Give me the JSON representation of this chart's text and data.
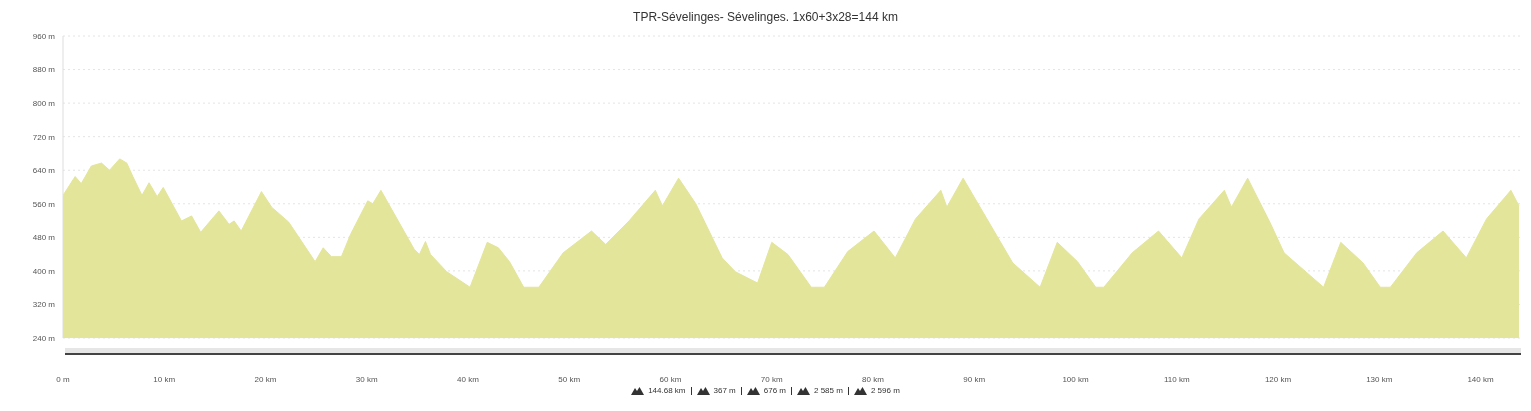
{
  "chart_data": {
    "type": "area",
    "title": "TPR-Sévelinges- Sévelinges. 1x60+3x28=144 km",
    "x": [
      0,
      1.2,
      1.8,
      2.8,
      3.8,
      4.6,
      5.6,
      6.3,
      6.9,
      7.8,
      8.5,
      9.3,
      9.9,
      11.7,
      12.7,
      13.6,
      15.4,
      16.4,
      16.9,
      17.6,
      19.6,
      20.6,
      22.3,
      24.9,
      25.7,
      26.5,
      27.5,
      28.4,
      30.1,
      30.6,
      31.4,
      34.7,
      35.2,
      35.8,
      36.3,
      37.9,
      40.2,
      41.9,
      43.0,
      44.1,
      45.5,
      47.0,
      49.4,
      52.2,
      53.6,
      55.9,
      58.5,
      59.2,
      60.8,
      62.5,
      65.1,
      66.4,
      68.6,
      70.0,
      71.6,
      73.9,
      75.2,
      77.5,
      80.1,
      82.2,
      84.2,
      86.7,
      87.3,
      88.9,
      93.8,
      96.5,
      98.2,
      100.2,
      102.0,
      102.8,
      105.6,
      108.2,
      110.5,
      112.2,
      114.7,
      115.4,
      117.0,
      119.3,
      120.6,
      124.5,
      126.2,
      128.4,
      130.1,
      131.1,
      133.7,
      136.3,
      138.6,
      140.6,
      143.0,
      143.8
    ],
    "series": [
      {
        "color": "#e3e59a",
        "values": [
          580,
          625,
          608,
          650,
          657,
          640,
          667,
          657,
          625,
          580,
          610,
          577,
          599,
          519,
          531,
          492,
          543,
          511,
          519,
          495,
          589,
          552,
          516,
          422,
          455,
          434,
          434,
          487,
          567,
          560,
          592,
          451,
          439,
          470,
          439,
          398,
          361,
          468,
          455,
          422,
          361,
          361,
          443,
          495,
          463,
          519,
          592,
          555,
          621,
          560,
          431,
          398,
          371,
          468,
          439,
          361,
          361,
          446,
          495,
          431,
          524,
          592,
          552,
          621,
          419,
          361,
          468,
          422,
          361,
          361,
          443,
          495,
          431,
          524,
          592,
          552,
          621,
          511,
          443,
          361,
          468,
          419,
          361,
          361,
          443,
          495,
          431,
          524,
          592,
          555
        ]
      }
    ],
    "xlim": [
      0,
      144
    ],
    "xticks": [
      {
        "value": 0,
        "label": "0 m"
      },
      {
        "value": 10,
        "label": "10 km"
      },
      {
        "value": 20,
        "label": "20 km"
      },
      {
        "value": 30,
        "label": "30 km"
      },
      {
        "value": 40,
        "label": "40 km"
      },
      {
        "value": 50,
        "label": "50 km"
      },
      {
        "value": 60,
        "label": "60 km"
      },
      {
        "value": 70,
        "label": "70 km"
      },
      {
        "value": 80,
        "label": "80 km"
      },
      {
        "value": 90,
        "label": "90 km"
      },
      {
        "value": 100,
        "label": "100 km"
      },
      {
        "value": 110,
        "label": "110 km"
      },
      {
        "value": 120,
        "label": "120 km"
      },
      {
        "value": 130,
        "label": "130 km"
      },
      {
        "value": 140,
        "label": "140 km"
      }
    ],
    "ylim": [
      240,
      960
    ],
    "yticks": [
      {
        "value": 240,
        "label": "240 m"
      },
      {
        "value": 320,
        "label": "320 m"
      },
      {
        "value": 400,
        "label": "400 m"
      },
      {
        "value": 480,
        "label": "480 m"
      },
      {
        "value": 560,
        "label": "560 m"
      },
      {
        "value": 640,
        "label": "640 m"
      },
      {
        "value": 720,
        "label": "720 m"
      },
      {
        "value": 800,
        "label": "800 m"
      },
      {
        "value": 880,
        "label": "880 m"
      },
      {
        "value": 960,
        "label": "960 m"
      }
    ],
    "grid": "y",
    "annotations": [
      "144.68 km",
      "367 m",
      "676 m",
      "2 585 m",
      "2 596 m"
    ]
  }
}
